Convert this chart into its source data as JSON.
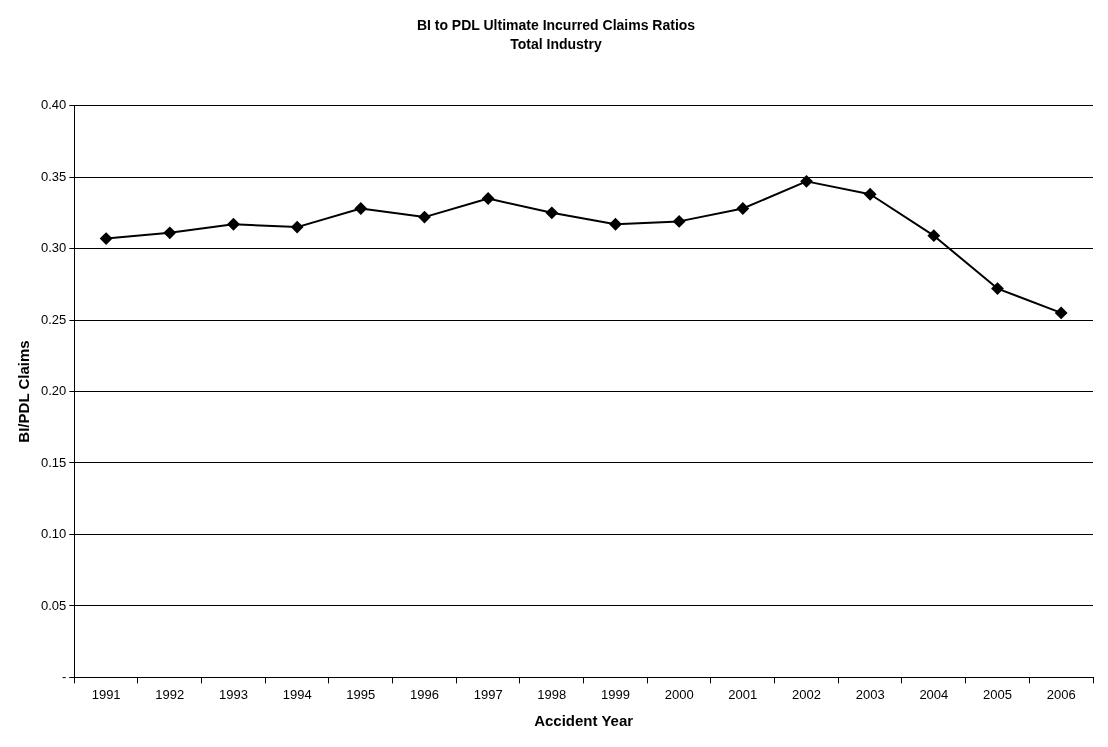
{
  "chart_data": {
    "type": "line",
    "title": "BI to PDL Ultimate Incurred Claims Ratios",
    "subtitle": "Total Industry",
    "xlabel": "Accident Year",
    "ylabel": "BI/PDL Claims",
    "categories": [
      "1991",
      "1992",
      "1993",
      "1994",
      "1995",
      "1996",
      "1997",
      "1998",
      "1999",
      "2000",
      "2001",
      "2002",
      "2003",
      "2004",
      "2005",
      "2006"
    ],
    "series": [
      {
        "color": "#000000",
        "values": [
          0.307,
          0.311,
          0.317,
          0.315,
          0.328,
          0.322,
          0.335,
          0.325,
          0.317,
          0.319,
          0.328,
          0.347,
          0.338,
          0.309,
          0.272,
          0.255
        ]
      }
    ],
    "ylim": [
      0,
      0.4
    ],
    "yticks": [
      {
        "value": 0,
        "label": "-"
      },
      {
        "value": 0.05,
        "label": "0.05"
      },
      {
        "value": 0.1,
        "label": "0.10"
      },
      {
        "value": 0.15,
        "label": "0.15"
      },
      {
        "value": 0.2,
        "label": "0.20"
      },
      {
        "value": 0.25,
        "label": "0.25"
      },
      {
        "value": 0.3,
        "label": "0.30"
      },
      {
        "value": 0.35,
        "label": "0.35"
      },
      {
        "value": 0.4,
        "label": "0.40"
      }
    ],
    "grid": "y",
    "legend": false,
    "marker": "diamond",
    "line_style": "solid"
  }
}
